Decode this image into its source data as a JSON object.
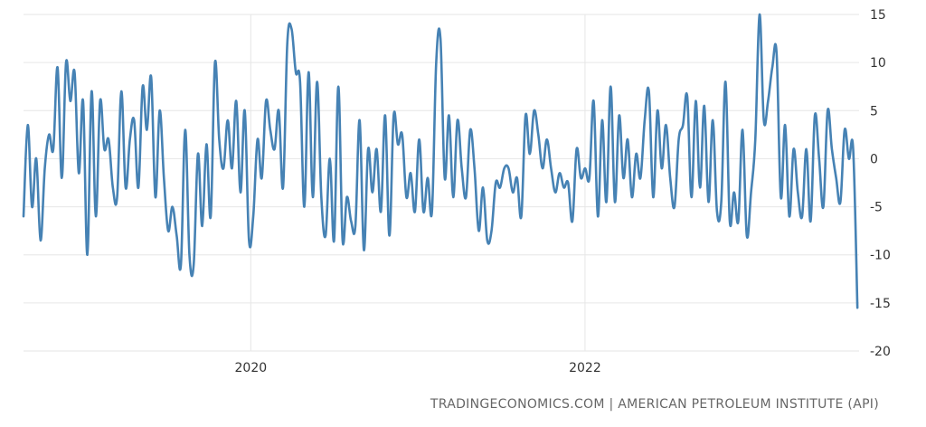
{
  "source_text": "TRADINGECONOMICS.COM | AMERICAN PETROLEUM INSTITUTE (API)",
  "colors": {
    "line": "#4682b4",
    "grid": "#e6e6e6",
    "text": "#333333"
  },
  "chart_data": {
    "type": "line",
    "title": "",
    "xlabel": "",
    "ylabel": "",
    "x_tick_labels": [
      "2020",
      "2022"
    ],
    "x_tick_values": [
      2020.0,
      2022.0
    ],
    "y_ticks": [
      15,
      10,
      5,
      0,
      -5,
      -10,
      -15,
      -20
    ],
    "ylim": [
      -20,
      15
    ],
    "xlim": [
      2018.64,
      2023.64
    ],
    "grid": true,
    "legend": "none",
    "series": [
      {
        "name": "",
        "x_start": 2018.64,
        "x_end": 2023.63,
        "values": [
          -6,
          3.5,
          -5,
          0,
          -8.5,
          -1,
          2.5,
          1,
          9.5,
          -2,
          10,
          6,
          9,
          -1.5,
          6,
          -10,
          7,
          -6,
          6,
          1,
          2,
          -3,
          -4,
          7,
          -3,
          2,
          4,
          -3,
          7.5,
          3,
          8.5,
          -4,
          5,
          -2,
          -7.5,
          -5,
          -8,
          -11,
          3,
          -10,
          -11,
          0.5,
          -7,
          1.5,
          -6,
          10,
          2,
          -1,
          4,
          -1,
          6,
          -3.5,
          5,
          -8.5,
          -6,
          2,
          -2,
          6,
          3,
          1,
          5,
          -3,
          12,
          13.5,
          9,
          8,
          -5,
          9,
          -4,
          8,
          -4,
          -8,
          0,
          -8.5,
          7.5,
          -8.5,
          -4,
          -6.5,
          -7,
          4,
          -9.5,
          1,
          -3.5,
          1,
          -5.5,
          4.5,
          -8,
          4.5,
          1.5,
          2.5,
          -4,
          -1.5,
          -5.5,
          2,
          -5.5,
          -2,
          -5.5,
          10,
          12.5,
          -2,
          4.5,
          -4,
          4,
          -1,
          -4,
          3,
          -1,
          -7.5,
          -3,
          -8.5,
          -7.5,
          -2.5,
          -3,
          -1,
          -1,
          -3.5,
          -2,
          -6,
          4.5,
          0.5,
          5,
          2.5,
          -1,
          2,
          -1,
          -3.5,
          -1.5,
          -3,
          -2.5,
          -6.5,
          1,
          -2,
          -1,
          -2,
          6,
          -6,
          4,
          -4.5,
          7.5,
          -4.5,
          4.5,
          -2,
          2,
          -4,
          0.5,
          -2,
          4,
          7,
          -4,
          5,
          -1,
          3.5,
          -2,
          -5,
          2,
          3.5,
          6.5,
          -4,
          6,
          -3,
          5.5,
          -4.5,
          4,
          -5.5,
          -4.5,
          8,
          -6.5,
          -3.5,
          -6.5,
          3,
          -8,
          -3.5,
          2,
          15,
          4,
          6,
          9.5,
          11,
          -4,
          3.5,
          -6,
          1,
          -3.5,
          -6,
          1,
          -6.5,
          4.5,
          0,
          -5,
          5,
          1,
          -2,
          -4.5,
          3,
          0,
          1,
          -15.5
        ]
      }
    ]
  }
}
